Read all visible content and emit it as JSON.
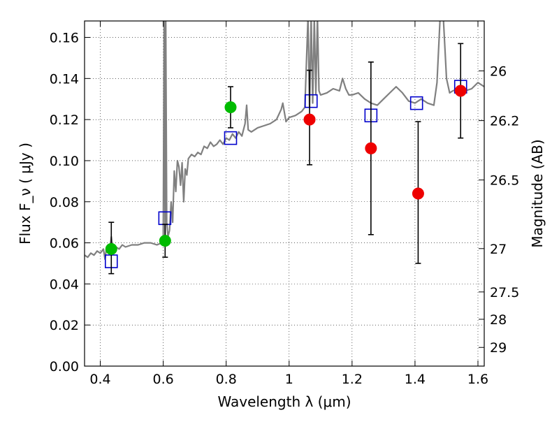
{
  "chart_data": {
    "type": "scatter",
    "xlabel": "Wavelength  λ (μm)",
    "ylabel": "Flux  F_ν  ( μJy )",
    "y2label": "Magnitude (AB)",
    "xlim": [
      0.35,
      1.62
    ],
    "ylim": [
      0.0,
      0.168
    ],
    "grid": true,
    "x_ticks": [
      {
        "value": 0.4,
        "label": "0.4"
      },
      {
        "value": 0.6,
        "label": "0.6"
      },
      {
        "value": 0.8,
        "label": "0.8"
      },
      {
        "value": 1.0,
        "label": "1"
      },
      {
        "value": 1.2,
        "label": "1.2"
      },
      {
        "value": 1.4,
        "label": "1.4"
      },
      {
        "value": 1.6,
        "label": "1.6"
      }
    ],
    "y_ticks": [
      {
        "value": 0.0,
        "label": "0.00"
      },
      {
        "value": 0.02,
        "label": "0.02"
      },
      {
        "value": 0.04,
        "label": "0.04"
      },
      {
        "value": 0.06,
        "label": "0.06"
      },
      {
        "value": 0.08,
        "label": "0.08"
      },
      {
        "value": 0.1,
        "label": "0.10"
      },
      {
        "value": 0.12,
        "label": "0.12"
      },
      {
        "value": 0.14,
        "label": "0.14"
      },
      {
        "value": 0.16,
        "label": "0.16"
      }
    ],
    "y2_ticks": [
      {
        "label": "26",
        "flux": 0.1437
      },
      {
        "label": "26.2",
        "flux": 0.1195
      },
      {
        "label": "26.5",
        "flux": 0.0906
      },
      {
        "label": "27",
        "flux": 0.0572
      },
      {
        "label": "27.5",
        "flux": 0.0361
      },
      {
        "label": "28",
        "flux": 0.0228
      },
      {
        "label": "29",
        "flux": 0.0091
      }
    ],
    "series": [
      {
        "kind": "model-spectrum",
        "color": "#808080",
        "points": [
          [
            0.35,
            0.054
          ],
          [
            0.36,
            0.053
          ],
          [
            0.37,
            0.055
          ],
          [
            0.38,
            0.054
          ],
          [
            0.39,
            0.056
          ],
          [
            0.4,
            0.055
          ],
          [
            0.41,
            0.057
          ],
          [
            0.415,
            0.052
          ],
          [
            0.42,
            0.058
          ],
          [
            0.43,
            0.056
          ],
          [
            0.435,
            0.063
          ],
          [
            0.44,
            0.057
          ],
          [
            0.45,
            0.058
          ],
          [
            0.46,
            0.057
          ],
          [
            0.47,
            0.059
          ],
          [
            0.48,
            0.058
          ],
          [
            0.5,
            0.059
          ],
          [
            0.52,
            0.059
          ],
          [
            0.54,
            0.06
          ],
          [
            0.56,
            0.06
          ],
          [
            0.58,
            0.059
          ],
          [
            0.595,
            0.06
          ],
          [
            0.6,
            0.06
          ],
          [
            0.603,
            0.17
          ],
          [
            0.606,
            0.061
          ],
          [
            0.608,
            0.17
          ],
          [
            0.611,
            0.07
          ],
          [
            0.615,
            0.063
          ],
          [
            0.62,
            0.066
          ],
          [
            0.625,
            0.08
          ],
          [
            0.63,
            0.07
          ],
          [
            0.635,
            0.095
          ],
          [
            0.64,
            0.085
          ],
          [
            0.645,
            0.1
          ],
          [
            0.65,
            0.097
          ],
          [
            0.655,
            0.088
          ],
          [
            0.66,
            0.099
          ],
          [
            0.665,
            0.08
          ],
          [
            0.67,
            0.096
          ],
          [
            0.675,
            0.093
          ],
          [
            0.68,
            0.101
          ],
          [
            0.69,
            0.103
          ],
          [
            0.7,
            0.102
          ],
          [
            0.71,
            0.104
          ],
          [
            0.72,
            0.103
          ],
          [
            0.73,
            0.107
          ],
          [
            0.74,
            0.106
          ],
          [
            0.75,
            0.109
          ],
          [
            0.76,
            0.107
          ],
          [
            0.77,
            0.108
          ],
          [
            0.78,
            0.11
          ],
          [
            0.79,
            0.108
          ],
          [
            0.8,
            0.111
          ],
          [
            0.81,
            0.11
          ],
          [
            0.82,
            0.113
          ],
          [
            0.83,
            0.111
          ],
          [
            0.84,
            0.114
          ],
          [
            0.85,
            0.112
          ],
          [
            0.86,
            0.118
          ],
          [
            0.865,
            0.127
          ],
          [
            0.87,
            0.115
          ],
          [
            0.88,
            0.114
          ],
          [
            0.9,
            0.116
          ],
          [
            0.92,
            0.117
          ],
          [
            0.94,
            0.118
          ],
          [
            0.96,
            0.12
          ],
          [
            0.975,
            0.125
          ],
          [
            0.98,
            0.128
          ],
          [
            0.99,
            0.119
          ],
          [
            1.0,
            0.121
          ],
          [
            1.02,
            0.122
          ],
          [
            1.04,
            0.124
          ],
          [
            1.05,
            0.126
          ],
          [
            1.06,
            0.17
          ],
          [
            1.065,
            0.126
          ],
          [
            1.07,
            0.17
          ],
          [
            1.075,
            0.128
          ],
          [
            1.08,
            0.17
          ],
          [
            1.085,
            0.132
          ],
          [
            1.09,
            0.17
          ],
          [
            1.095,
            0.134
          ],
          [
            1.1,
            0.132
          ],
          [
            1.12,
            0.133
          ],
          [
            1.14,
            0.135
          ],
          [
            1.16,
            0.134
          ],
          [
            1.17,
            0.14
          ],
          [
            1.18,
            0.135
          ],
          [
            1.19,
            0.132
          ],
          [
            1.2,
            0.132
          ],
          [
            1.22,
            0.133
          ],
          [
            1.24,
            0.13
          ],
          [
            1.26,
            0.128
          ],
          [
            1.28,
            0.127
          ],
          [
            1.3,
            0.13
          ],
          [
            1.32,
            0.133
          ],
          [
            1.34,
            0.136
          ],
          [
            1.36,
            0.133
          ],
          [
            1.38,
            0.129
          ],
          [
            1.4,
            0.128
          ],
          [
            1.42,
            0.13
          ],
          [
            1.44,
            0.128
          ],
          [
            1.46,
            0.127
          ],
          [
            1.47,
            0.138
          ],
          [
            1.48,
            0.17
          ],
          [
            1.49,
            0.17
          ],
          [
            1.5,
            0.14
          ],
          [
            1.51,
            0.133
          ],
          [
            1.52,
            0.134
          ],
          [
            1.54,
            0.135
          ],
          [
            1.56,
            0.134
          ],
          [
            1.58,
            0.135
          ],
          [
            1.6,
            0.138
          ],
          [
            1.62,
            0.136
          ]
        ]
      },
      {
        "kind": "model-photometry",
        "marker": "open-square",
        "color": "#0000cc",
        "points": [
          [
            0.435,
            0.051
          ],
          [
            0.605,
            0.072
          ],
          [
            0.814,
            0.111
          ],
          [
            1.07,
            0.129
          ],
          [
            1.26,
            0.122
          ],
          [
            1.405,
            0.128
          ],
          [
            1.545,
            0.136
          ]
        ]
      },
      {
        "kind": "observed-detections",
        "marker": "filled-circle",
        "color": "#00bb00",
        "points": [
          {
            "x": 0.435,
            "y": 0.057,
            "yerr": [
              0.045,
              0.07
            ]
          },
          {
            "x": 0.606,
            "y": 0.061,
            "yerr": [
              0.053,
              0.069
            ]
          },
          {
            "x": 0.814,
            "y": 0.126,
            "yerr": [
              0.116,
              0.136
            ]
          }
        ]
      },
      {
        "kind": "observed-detections",
        "marker": "filled-circle",
        "color": "#ee0000",
        "points": [
          {
            "x": 1.065,
            "y": 0.12,
            "yerr": [
              0.098,
              0.144
            ]
          },
          {
            "x": 1.26,
            "y": 0.106,
            "yerr": [
              0.064,
              0.148
            ]
          },
          {
            "x": 1.41,
            "y": 0.084,
            "yerr": [
              0.05,
              0.119
            ]
          },
          {
            "x": 1.545,
            "y": 0.134,
            "yerr": [
              0.111,
              0.157
            ]
          }
        ]
      }
    ]
  }
}
